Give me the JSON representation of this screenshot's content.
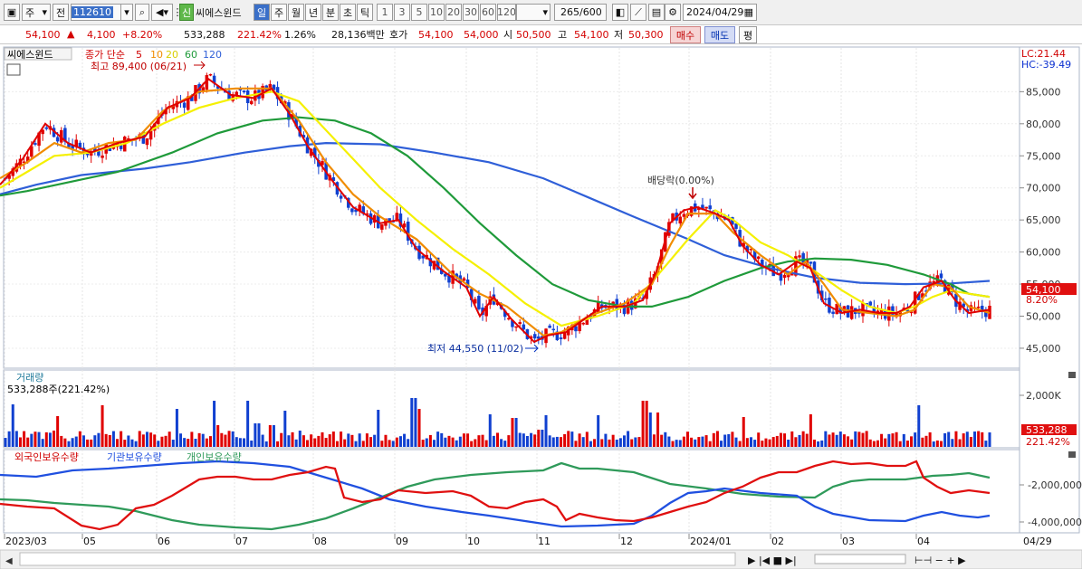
{
  "toolbar": {
    "market": "주",
    "period_prev": "전",
    "code": "112610",
    "new_badge": "신",
    "name": "씨에스윈드",
    "periods": [
      "일",
      "주",
      "월",
      "년",
      "분",
      "초",
      "틱"
    ],
    "active_period": "일",
    "numbers": [
      "1",
      "3",
      "5",
      "10",
      "20",
      "30",
      "60",
      "120"
    ],
    "range_value": "265",
    "range_total": "/600",
    "date": "2024/04/29"
  },
  "quote": {
    "price": "54,100",
    "arrow": "▲",
    "change": "4,100",
    "rate": "+8.20%",
    "volume": "533,288",
    "vol_ratio": "221.42%",
    "turnover": "1.26%",
    "amount": "28,136백만",
    "ask_label": "호가",
    "ask1": "54,100",
    "ask2": "54,000",
    "open_label": "시",
    "open": "50,500",
    "high_label": "고",
    "high": "54,100",
    "low_label": "저",
    "low": "50,300",
    "buy": "매수",
    "sell": "매도",
    "avg": "평"
  },
  "price_panel": {
    "name": "씨에스윈드",
    "ma_label": "종가 단순",
    "ma_periods": [
      "5",
      "10",
      "20",
      "60",
      "120"
    ],
    "high_note": "최고 89,400 (06/21)",
    "low_note": "최저 44,550 (11/02)",
    "dividend_note": "배당락(0.00%)",
    "lc": "LC:21.44",
    "hc": "HC:-39.49",
    "y_ticks": [
      "85,000",
      "80,000",
      "75,000",
      "70,000",
      "65,000",
      "60,000",
      "55,000",
      "50,000",
      "45,000"
    ],
    "current_price": "54,100",
    "current_rate": "8.20%"
  },
  "volume_panel": {
    "title": "거래량",
    "info": "533,288주(221.42%)",
    "y_tick": "2,000K",
    "current": "533,288",
    "ratio": "221.42%"
  },
  "holder_panel": {
    "legend": [
      "외국인보유수량",
      "기관보유수량",
      "개인보유수량"
    ],
    "y_ticks": [
      "-2,000,000",
      "-4,000,000"
    ]
  },
  "x_axis": {
    "labels": [
      "2023/03",
      "05",
      "06",
      "07",
      "08",
      "09",
      "10",
      "11",
      "12",
      "2024/01",
      "02",
      "03",
      "04"
    ],
    "last_date": "04/29"
  },
  "colors": {
    "up": "#e00000",
    "down": "#1040d0",
    "ma5": "#e00000",
    "ma10": "#f08c00",
    "ma20": "#f5f000",
    "ma60": "#1f9a3a",
    "ma120": "#2f5fd8",
    "foreign": "#e01010",
    "inst": "#2050e0",
    "indiv": "#2f9a5a"
  },
  "series": {
    "ma120": [
      [
        0,
        69.0
      ],
      [
        40,
        70.5
      ],
      [
        90,
        72.0
      ],
      [
        160,
        73.0
      ],
      [
        210,
        74.0
      ],
      [
        270,
        75.5
      ],
      [
        320,
        76.5
      ],
      [
        360,
        77.0
      ],
      [
        420,
        76.8
      ],
      [
        480,
        75.5
      ],
      [
        540,
        74.0
      ],
      [
        600,
        71.5
      ],
      [
        650,
        68.5
      ],
      [
        700,
        65.5
      ],
      [
        760,
        62.0
      ],
      [
        800,
        59.5
      ],
      [
        850,
        57.5
      ],
      [
        900,
        56.0
      ],
      [
        950,
        55.2
      ],
      [
        1000,
        55.0
      ],
      [
        1050,
        55.1
      ],
      [
        1093,
        55.5
      ]
    ],
    "ma60": [
      [
        0,
        68.8
      ],
      [
        30,
        69.5
      ],
      [
        80,
        71.0
      ],
      [
        130,
        72.5
      ],
      [
        190,
        75.5
      ],
      [
        240,
        78.5
      ],
      [
        290,
        80.5
      ],
      [
        330,
        81.0
      ],
      [
        370,
        80.5
      ],
      [
        410,
        78.5
      ],
      [
        450,
        75.0
      ],
      [
        490,
        70.0
      ],
      [
        530,
        64.5
      ],
      [
        570,
        59.5
      ],
      [
        610,
        55.0
      ],
      [
        650,
        52.5
      ],
      [
        690,
        51.5
      ],
      [
        720,
        51.5
      ],
      [
        760,
        53.0
      ],
      [
        800,
        55.5
      ],
      [
        840,
        57.5
      ],
      [
        870,
        58.5
      ],
      [
        900,
        59.0
      ],
      [
        940,
        58.8
      ],
      [
        980,
        58.0
      ],
      [
        1020,
        56.5
      ],
      [
        1050,
        55.0
      ],
      [
        1070,
        53.5
      ],
      [
        1093,
        53.0
      ]
    ],
    "ma20": [
      [
        0,
        70.0
      ],
      [
        30,
        72.5
      ],
      [
        60,
        75.0
      ],
      [
        100,
        75.5
      ],
      [
        140,
        77.0
      ],
      [
        180,
        80.0
      ],
      [
        220,
        82.5
      ],
      [
        260,
        84.0
      ],
      [
        300,
        85.0
      ],
      [
        330,
        83.5
      ],
      [
        360,
        79.0
      ],
      [
        390,
        74.5
      ],
      [
        420,
        70.0
      ],
      [
        460,
        65.0
      ],
      [
        500,
        60.5
      ],
      [
        540,
        56.5
      ],
      [
        580,
        52.0
      ],
      [
        620,
        48.5
      ],
      [
        660,
        50.0
      ],
      [
        700,
        52.0
      ],
      [
        730,
        57.0
      ],
      [
        760,
        62.0
      ],
      [
        790,
        66.5
      ],
      [
        810,
        65.0
      ],
      [
        840,
        61.5
      ],
      [
        870,
        59.5
      ],
      [
        900,
        57.0
      ],
      [
        930,
        54.0
      ],
      [
        960,
        51.5
      ],
      [
        990,
        50.5
      ],
      [
        1010,
        51.5
      ],
      [
        1030,
        53.0
      ],
      [
        1050,
        54.0
      ],
      [
        1070,
        53.5
      ],
      [
        1093,
        53.0
      ]
    ],
    "ma10": [
      [
        0,
        71.5
      ],
      [
        30,
        74.0
      ],
      [
        60,
        77.0
      ],
      [
        90,
        75.5
      ],
      [
        120,
        77.0
      ],
      [
        150,
        77.5
      ],
      [
        180,
        82.0
      ],
      [
        220,
        85.0
      ],
      [
        260,
        85.5
      ],
      [
        300,
        85.5
      ],
      [
        330,
        80.5
      ],
      [
        360,
        74.0
      ],
      [
        390,
        69.0
      ],
      [
        420,
        65.5
      ],
      [
        460,
        62.0
      ],
      [
        500,
        56.5
      ],
      [
        530,
        53.5
      ],
      [
        560,
        51.5
      ],
      [
        600,
        47.0
      ],
      [
        620,
        47.5
      ],
      [
        650,
        50.0
      ],
      [
        690,
        52.0
      ],
      [
        720,
        55.0
      ],
      [
        740,
        61.0
      ],
      [
        760,
        66.0
      ],
      [
        790,
        66.0
      ],
      [
        810,
        63.0
      ],
      [
        840,
        59.5
      ],
      [
        870,
        56.5
      ],
      [
        890,
        58.5
      ],
      [
        910,
        55.0
      ],
      [
        930,
        51.0
      ],
      [
        960,
        50.5
      ],
      [
        990,
        50.0
      ],
      [
        1010,
        51.0
      ],
      [
        1030,
        55.0
      ],
      [
        1050,
        54.5
      ],
      [
        1070,
        51.5
      ],
      [
        1093,
        50.5
      ]
    ],
    "ma5": [
      [
        0,
        70.5
      ],
      [
        25,
        74.5
      ],
      [
        50,
        80.0
      ],
      [
        75,
        77.0
      ],
      [
        100,
        75.5
      ],
      [
        130,
        77.0
      ],
      [
        160,
        78.0
      ],
      [
        185,
        82.5
      ],
      [
        210,
        84.0
      ],
      [
        230,
        87.0
      ],
      [
        255,
        84.5
      ],
      [
        280,
        84.0
      ],
      [
        300,
        85.5
      ],
      [
        320,
        81.5
      ],
      [
        340,
        76.5
      ],
      [
        365,
        71.5
      ],
      [
        390,
        67.0
      ],
      [
        420,
        64.5
      ],
      [
        440,
        65.0
      ],
      [
        460,
        60.5
      ],
      [
        490,
        57.0
      ],
      [
        515,
        54.5
      ],
      [
        530,
        50.0
      ],
      [
        545,
        53.0
      ],
      [
        565,
        49.5
      ],
      [
        590,
        46.0
      ],
      [
        605,
        47.0
      ],
      [
        625,
        47.5
      ],
      [
        645,
        49.5
      ],
      [
        665,
        51.5
      ],
      [
        690,
        51.5
      ],
      [
        710,
        52.5
      ],
      [
        725,
        57.0
      ],
      [
        740,
        64.5
      ],
      [
        755,
        66.5
      ],
      [
        770,
        67.0
      ],
      [
        790,
        66.0
      ],
      [
        805,
        65.0
      ],
      [
        820,
        61.0
      ],
      [
        840,
        58.0
      ],
      [
        860,
        56.5
      ],
      [
        880,
        58.5
      ],
      [
        895,
        57.5
      ],
      [
        910,
        52.0
      ],
      [
        930,
        50.5
      ],
      [
        950,
        51.0
      ],
      [
        970,
        50.5
      ],
      [
        990,
        50.5
      ],
      [
        1005,
        51.5
      ],
      [
        1020,
        54.5
      ],
      [
        1040,
        55.5
      ],
      [
        1055,
        52.5
      ],
      [
        1070,
        50.5
      ],
      [
        1093,
        51.0
      ]
    ],
    "foreign": [
      [
        0,
        557
      ],
      [
        30,
        560
      ],
      [
        60,
        562
      ],
      [
        90,
        581
      ],
      [
        110,
        585
      ],
      [
        130,
        580
      ],
      [
        150,
        562
      ],
      [
        170,
        558
      ],
      [
        190,
        548
      ],
      [
        220,
        530
      ],
      [
        240,
        527
      ],
      [
        260,
        527
      ],
      [
        280,
        530
      ],
      [
        300,
        530
      ],
      [
        320,
        525
      ],
      [
        340,
        522
      ],
      [
        360,
        516
      ],
      [
        370,
        518
      ],
      [
        380,
        550
      ],
      [
        400,
        555
      ],
      [
        420,
        552
      ],
      [
        440,
        542
      ],
      [
        470,
        545
      ],
      [
        500,
        543
      ],
      [
        520,
        548
      ],
      [
        540,
        560
      ],
      [
        560,
        562
      ],
      [
        580,
        555
      ],
      [
        600,
        552
      ],
      [
        615,
        560
      ],
      [
        625,
        575
      ],
      [
        640,
        568
      ],
      [
        660,
        572
      ],
      [
        680,
        575
      ],
      [
        700,
        576
      ],
      [
        720,
        572
      ],
      [
        740,
        566
      ],
      [
        760,
        560
      ],
      [
        780,
        555
      ],
      [
        800,
        545
      ],
      [
        820,
        538
      ],
      [
        840,
        528
      ],
      [
        860,
        522
      ],
      [
        880,
        522
      ],
      [
        900,
        515
      ],
      [
        920,
        510
      ],
      [
        940,
        513
      ],
      [
        960,
        512
      ],
      [
        980,
        515
      ],
      [
        1000,
        515
      ],
      [
        1012,
        510
      ],
      [
        1020,
        528
      ],
      [
        1035,
        538
      ],
      [
        1050,
        545
      ],
      [
        1070,
        542
      ],
      [
        1093,
        545
      ]
    ],
    "indiv": [
      [
        0,
        552
      ],
      [
        30,
        553
      ],
      [
        60,
        556
      ],
      [
        90,
        558
      ],
      [
        120,
        560
      ],
      [
        150,
        565
      ],
      [
        190,
        575
      ],
      [
        220,
        580
      ],
      [
        260,
        583
      ],
      [
        300,
        585
      ],
      [
        330,
        580
      ],
      [
        360,
        573
      ],
      [
        390,
        562
      ],
      [
        420,
        550
      ],
      [
        450,
        538
      ],
      [
        480,
        530
      ],
      [
        520,
        525
      ],
      [
        560,
        522
      ],
      [
        600,
        520
      ],
      [
        620,
        512
      ],
      [
        640,
        518
      ],
      [
        660,
        518
      ],
      [
        700,
        522
      ],
      [
        740,
        535
      ],
      [
        780,
        540
      ],
      [
        820,
        546
      ],
      [
        860,
        549
      ],
      [
        900,
        550
      ],
      [
        920,
        538
      ],
      [
        940,
        532
      ],
      [
        960,
        530
      ],
      [
        1000,
        530
      ],
      [
        1030,
        526
      ],
      [
        1050,
        525
      ],
      [
        1070,
        523
      ],
      [
        1093,
        528
      ]
    ],
    "inst": [
      [
        0,
        525
      ],
      [
        40,
        527
      ],
      [
        80,
        520
      ],
      [
        120,
        518
      ],
      [
        160,
        515
      ],
      [
        200,
        512
      ],
      [
        240,
        510
      ],
      [
        280,
        512
      ],
      [
        320,
        516
      ],
      [
        360,
        528
      ],
      [
        400,
        540
      ],
      [
        430,
        552
      ],
      [
        470,
        560
      ],
      [
        510,
        566
      ],
      [
        540,
        570
      ],
      [
        580,
        576
      ],
      [
        620,
        582
      ],
      [
        660,
        581
      ],
      [
        700,
        579
      ],
      [
        720,
        570
      ],
      [
        740,
        556
      ],
      [
        760,
        545
      ],
      [
        780,
        543
      ],
      [
        800,
        540
      ],
      [
        840,
        545
      ],
      [
        880,
        548
      ],
      [
        900,
        560
      ],
      [
        920,
        568
      ],
      [
        960,
        575
      ],
      [
        1000,
        576
      ],
      [
        1020,
        570
      ],
      [
        1040,
        566
      ],
      [
        1060,
        570
      ],
      [
        1080,
        572
      ],
      [
        1093,
        570
      ]
    ]
  }
}
